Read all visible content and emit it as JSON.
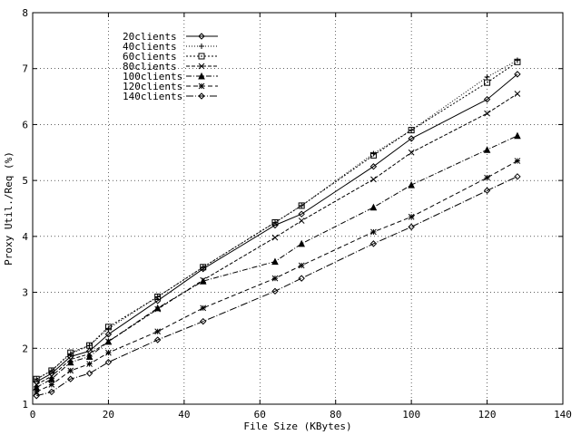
{
  "chart_data": {
    "type": "line",
    "xlabel": "File Size (KBytes)",
    "ylabel": "Proxy Util./Req (%)",
    "xlim": [
      0,
      140
    ],
    "ylim": [
      1,
      8
    ],
    "xticks": [
      0,
      20,
      40,
      60,
      80,
      100,
      120,
      140
    ],
    "yticks": [
      1,
      2,
      3,
      4,
      5,
      6,
      7,
      8
    ],
    "grid": true,
    "legend": "top-left",
    "x": [
      1,
      5,
      10,
      15,
      20,
      33,
      45,
      64,
      71,
      90,
      100,
      120,
      128
    ],
    "series": [
      {
        "name": "20clients",
        "marker": "diamond",
        "dash": "",
        "values": [
          1.4,
          1.55,
          1.85,
          1.95,
          2.25,
          2.85,
          3.42,
          4.2,
          4.4,
          5.25,
          5.75,
          6.45,
          6.9
        ]
      },
      {
        "name": "40clients",
        "marker": "plus",
        "dash": "1 2",
        "values": [
          1.45,
          1.6,
          1.9,
          2.05,
          2.35,
          2.92,
          3.45,
          4.25,
          4.55,
          5.48,
          5.9,
          6.85,
          7.15
        ]
      },
      {
        "name": "60clients",
        "marker": "square",
        "dash": "2 2",
        "values": [
          1.45,
          1.6,
          1.92,
          2.05,
          2.38,
          2.92,
          3.45,
          4.25,
          4.55,
          5.45,
          5.9,
          6.75,
          7.12
        ]
      },
      {
        "name": "80clients",
        "marker": "cross",
        "dash": "4 2",
        "values": [
          1.35,
          1.5,
          1.8,
          1.9,
          2.12,
          2.7,
          3.22,
          3.98,
          4.28,
          5.02,
          5.5,
          6.2,
          6.55
        ]
      },
      {
        "name": "100clients",
        "marker": "triangle",
        "dash": "6 2 1 2",
        "values": [
          1.3,
          1.45,
          1.75,
          1.85,
          2.12,
          2.72,
          3.2,
          3.55,
          3.87,
          4.52,
          4.92,
          5.55,
          5.8
        ]
      },
      {
        "name": "120clients",
        "marker": "star",
        "dash": "5 3",
        "values": [
          1.22,
          1.35,
          1.6,
          1.72,
          1.92,
          2.3,
          2.72,
          3.25,
          3.48,
          4.08,
          4.35,
          5.05,
          5.35
        ]
      },
      {
        "name": "140clients",
        "marker": "diamond",
        "dash": "8 2 1 2",
        "values": [
          1.15,
          1.22,
          1.45,
          1.55,
          1.75,
          2.15,
          2.48,
          3.02,
          3.25,
          3.87,
          4.17,
          4.82,
          5.07
        ]
      }
    ]
  }
}
